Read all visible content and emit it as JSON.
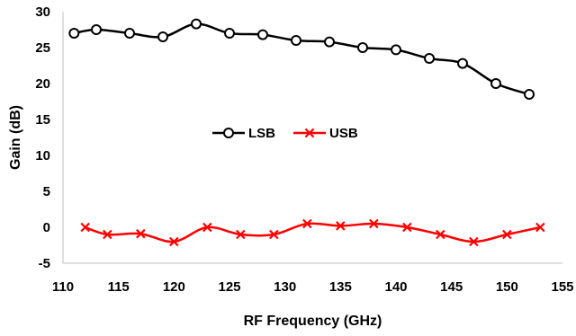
{
  "chart_data": {
    "type": "line",
    "xlabel": "RF Frequency (GHz)",
    "ylabel": "Gain (dB)",
    "xlim": [
      110,
      155
    ],
    "ylim": [
      -5,
      30
    ],
    "xticks": [
      110,
      115,
      120,
      125,
      130,
      135,
      140,
      145,
      150,
      155
    ],
    "yticks": [
      -5,
      0,
      5,
      10,
      15,
      20,
      25,
      30
    ],
    "grid": false,
    "legend_placement": "center",
    "series": [
      {
        "name": "LSB",
        "color": "#000000",
        "marker": "circle",
        "x": [
          111,
          113,
          116,
          119,
          122,
          125,
          128,
          131,
          134,
          137,
          140,
          143,
          146,
          149,
          152
        ],
        "y": [
          27.0,
          27.5,
          27.0,
          26.5,
          28.3,
          27.0,
          26.8,
          26.0,
          25.8,
          25.0,
          24.7,
          23.5,
          22.8,
          20.0,
          18.5
        ]
      },
      {
        "name": "USB",
        "color": "#ff0000",
        "marker": "x",
        "x": [
          112,
          114,
          117,
          120,
          123,
          126,
          129,
          132,
          135,
          138,
          141,
          144,
          147,
          150,
          153
        ],
        "y": [
          0.0,
          -1.0,
          -0.9,
          -2.0,
          0.0,
          -1.0,
          -1.0,
          0.5,
          0.2,
          0.5,
          0.0,
          -1.0,
          -2.0,
          -1.0,
          0.0
        ]
      }
    ]
  }
}
